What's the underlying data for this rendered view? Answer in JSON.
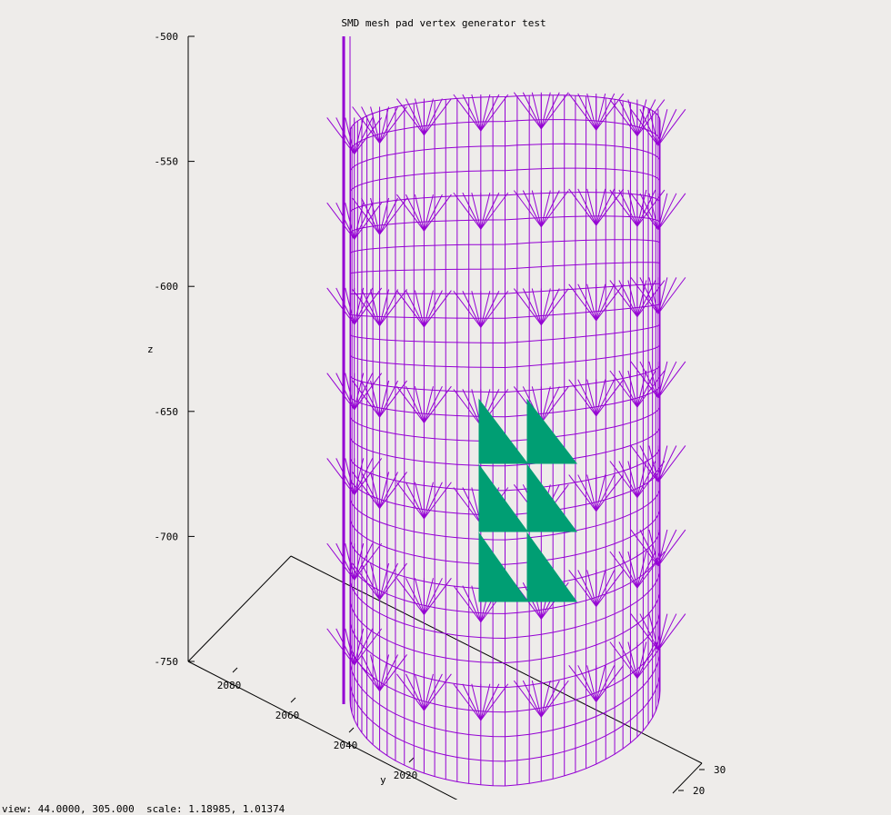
{
  "chart_data": {
    "type": "surface3d",
    "title": "SMD mesh pad vertex generator test",
    "zlabel": "z",
    "ylabel": "y",
    "xlabel": "",
    "z_ticks": [
      "-500",
      "-550",
      "-600",
      "-650",
      "-700",
      "-750"
    ],
    "y_ticks": [
      "2080",
      "2060",
      "2040",
      "2020"
    ],
    "x_ticks": [
      "30",
      "20"
    ],
    "zlim": [
      -750,
      -500
    ],
    "series": [
      {
        "kind": "cylindrical wireframe mesh",
        "color": "#9400d3"
      },
      {
        "kind": "pad triangles",
        "color": "#009e73",
        "count": 6
      }
    ]
  },
  "status": {
    "text": "view: 44.0000, 305.000  scale: 1.18985, 1.01374"
  },
  "colors": {
    "background": "#eeecea",
    "mesh": "#9400d3",
    "pad": "#009e73",
    "axis": "#000000"
  }
}
